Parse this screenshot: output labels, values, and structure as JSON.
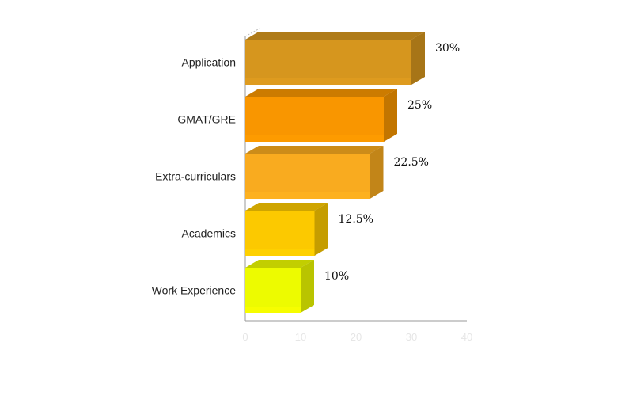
{
  "chart_data": {
    "type": "bar",
    "orientation": "horizontal",
    "style": "3d",
    "categories": [
      "Application",
      "GMAT/GRE",
      "Extra-curriculars",
      "Academics",
      "Work Experience"
    ],
    "values": [
      30,
      25,
      22.5,
      12.5,
      10
    ],
    "value_labels": [
      "30%",
      "25%",
      "22.5%",
      "12.5%",
      "10%"
    ],
    "colors": [
      "#D6961E",
      "#F99600",
      "#F9AB1F",
      "#FCC900",
      "#EDFB00"
    ],
    "x_ticks": [
      "0",
      "10",
      "20",
      "30",
      "40"
    ],
    "xlim": [
      0,
      40
    ],
    "grid": false,
    "legend": "none"
  }
}
